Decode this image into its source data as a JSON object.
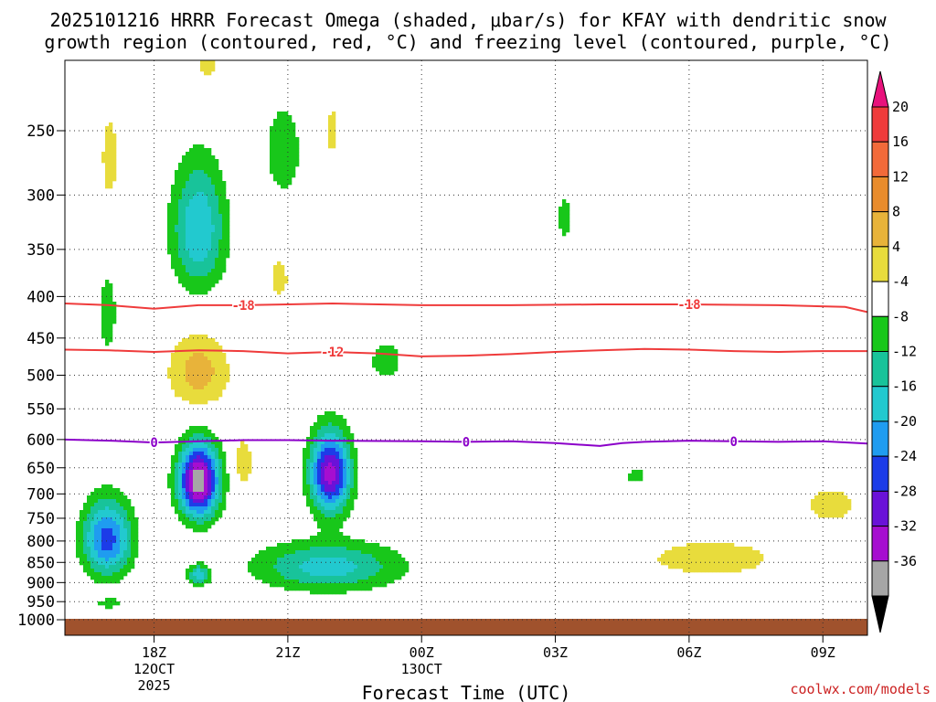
{
  "title_line1": "2025101216 HRRR Forecast Omega (shaded, μbar/s) for KFAY with dendritic snow",
  "title_line2": "growth region (contoured, red, °C) and freezing level (contoured, purple, °C)",
  "credit": "coolwx.com/models",
  "chart_data": {
    "type": "heatmap",
    "title": "2025101216 HRRR Forecast Omega (shaded, μbar/s) for KFAY with dendritic snow growth region (contoured, red, °C) and freezing level (contoured, purple, °C)",
    "xlabel": "Forecast Time (UTC)",
    "ylabel": "",
    "xlim_hours": [
      16,
      34
    ],
    "ylim_hpa": [
      1020,
      200
    ],
    "y_scale": "log-pressure",
    "grid": true,
    "x_ticks": [
      {
        "hour": 18,
        "label": "18Z",
        "sub1": "12OCT",
        "sub2": "2025"
      },
      {
        "hour": 21,
        "label": "21Z",
        "sub1": "",
        "sub2": ""
      },
      {
        "hour": 24,
        "label": "00Z",
        "sub1": "13OCT",
        "sub2": ""
      },
      {
        "hour": 27,
        "label": "03Z",
        "sub1": "",
        "sub2": ""
      },
      {
        "hour": 30,
        "label": "06Z",
        "sub1": "",
        "sub2": ""
      },
      {
        "hour": 33,
        "label": "09Z",
        "sub1": "",
        "sub2": ""
      }
    ],
    "y_ticks": [
      {
        "p": 250,
        "label": "250"
      },
      {
        "p": 300,
        "label": "300"
      },
      {
        "p": 350,
        "label": "350"
      },
      {
        "p": 400,
        "label": "400"
      },
      {
        "p": 450,
        "label": "450"
      },
      {
        "p": 500,
        "label": "500"
      },
      {
        "p": 550,
        "label": "550"
      },
      {
        "p": 600,
        "label": "600"
      },
      {
        "p": 650,
        "label": "650"
      },
      {
        "p": 700,
        "label": "700"
      },
      {
        "p": 750,
        "label": "750"
      },
      {
        "p": 800,
        "label": "800"
      },
      {
        "p": 850,
        "label": "850"
      },
      {
        "p": 900,
        "label": "900"
      },
      {
        "p": 950,
        "label": "950"
      },
      {
        "p": 1000,
        "label": "1000"
      }
    ],
    "colorbar": {
      "bins": [
        {
          "color": "#e8127c",
          "label": "",
          "shape": "arrow-up"
        },
        {
          "color": "#ef3b3b",
          "label": "20"
        },
        {
          "color": "#f26a3a",
          "label": "16"
        },
        {
          "color": "#e98c2c",
          "label": "12"
        },
        {
          "color": "#e8b33a",
          "label": "8"
        },
        {
          "color": "#e8dc3c",
          "label": "4"
        },
        {
          "color": "#ffffff",
          "label": "-4"
        },
        {
          "color": "#18c71a",
          "label": "-8"
        },
        {
          "color": "#18c39a",
          "label": "-12"
        },
        {
          "color": "#22c9cf",
          "label": "-16"
        },
        {
          "color": "#1f9cf0",
          "label": "-20"
        },
        {
          "color": "#1c3ce8",
          "label": "-24"
        },
        {
          "color": "#6a12d8",
          "label": "-28"
        },
        {
          "color": "#a60ed0",
          "label": "-32"
        },
        {
          "color": "#a6a6a6",
          "label": "-36"
        },
        {
          "color": "#000000",
          "label": "",
          "shape": "arrow-down"
        }
      ]
    },
    "terrain": {
      "from_hpa": 1000,
      "color": "#a0522d"
    },
    "omega_features": [
      {
        "hour": 16.95,
        "p": 795,
        "peak": -22,
        "hw": 0.55,
        "hp": 85
      },
      {
        "hour": 19.0,
        "p": 675,
        "peak": -36,
        "hw": 0.45,
        "hp": 70
      },
      {
        "hour": 21.95,
        "p": 660,
        "peak": -30,
        "hw": 0.45,
        "hp": 75
      },
      {
        "hour": 21.9,
        "p": 860,
        "peak": -14,
        "hw": 1.6,
        "hp": 60
      },
      {
        "hour": 19.0,
        "p": 880,
        "peak": -14,
        "hw": 0.25,
        "hp": 25
      },
      {
        "hour": 19.0,
        "p": 330,
        "peak": -16,
        "hw": 0.6,
        "hp": 60
      },
      {
        "hour": 20.9,
        "p": 265,
        "peak": -8,
        "hw": 0.4,
        "hp": 35
      },
      {
        "hour": 16.95,
        "p": 420,
        "peak": -8,
        "hw": 0.2,
        "hp": 45
      },
      {
        "hour": 23.2,
        "p": 480,
        "peak": -8,
        "hw": 0.35,
        "hp": 25
      },
      {
        "hour": 27.2,
        "p": 320,
        "peak": -6,
        "hw": 0.2,
        "hp": 25
      },
      {
        "hour": 28.8,
        "p": 665,
        "peak": -6,
        "hw": 0.25,
        "hp": 20
      },
      {
        "hour": 17.0,
        "p": 955,
        "peak": -6,
        "hw": 0.3,
        "hp": 15
      },
      {
        "hour": 19.0,
        "p": 495,
        "peak": 10,
        "hw": 0.7,
        "hp": 55
      },
      {
        "hour": 20.0,
        "p": 640,
        "peak": 8,
        "hw": 0.2,
        "hp": 45
      },
      {
        "hour": 17.0,
        "p": 270,
        "peak": 5,
        "hw": 0.3,
        "hp": 55
      },
      {
        "hour": 19.2,
        "p": 205,
        "peak": 5,
        "hw": 0.4,
        "hp": 25
      },
      {
        "hour": 20.8,
        "p": 380,
        "peak": 5,
        "hw": 0.35,
        "hp": 35
      },
      {
        "hour": 22.0,
        "p": 250,
        "peak": 5,
        "hw": 0.2,
        "hp": 30
      },
      {
        "hour": 30.5,
        "p": 840,
        "peak": 5,
        "hw": 2.5,
        "hp": 75
      },
      {
        "hour": 33.2,
        "p": 720,
        "peak": 5,
        "hw": 0.9,
        "hp": 55
      }
    ],
    "contours": [
      {
        "name": "dendritic -18C",
        "color": "#ef3b3b",
        "label": "-18",
        "points": [
          [
            16,
            408
          ],
          [
            17,
            410
          ],
          [
            18,
            414
          ],
          [
            19,
            410
          ],
          [
            20,
            410
          ],
          [
            21,
            409
          ],
          [
            22,
            408
          ],
          [
            24,
            410
          ],
          [
            26,
            410
          ],
          [
            28,
            409
          ],
          [
            30,
            409
          ],
          [
            32,
            410
          ],
          [
            33.5,
            412
          ],
          [
            34,
            418
          ]
        ],
        "label_hours": [
          20,
          30
        ]
      },
      {
        "name": "dendritic -12C",
        "color": "#ef3b3b",
        "label": "-12",
        "points": [
          [
            16,
            465
          ],
          [
            17,
            466
          ],
          [
            18,
            468
          ],
          [
            19,
            466
          ],
          [
            20,
            467
          ],
          [
            21,
            470
          ],
          [
            22,
            468
          ],
          [
            23,
            470
          ],
          [
            24,
            474
          ],
          [
            25,
            473
          ],
          [
            26,
            471
          ],
          [
            27,
            468
          ],
          [
            28,
            466
          ],
          [
            29,
            464
          ],
          [
            30,
            465
          ],
          [
            31,
            467
          ],
          [
            32,
            468
          ],
          [
            33,
            467
          ],
          [
            34,
            467
          ]
        ],
        "label_hours": [
          22
        ]
      },
      {
        "name": "freezing level 0C",
        "color": "#8b00c9",
        "label": "0",
        "points": [
          [
            16,
            600
          ],
          [
            17,
            602
          ],
          [
            18,
            605
          ],
          [
            19,
            603
          ],
          [
            20,
            601
          ],
          [
            21,
            601
          ],
          [
            22,
            602
          ],
          [
            24,
            603
          ],
          [
            25,
            604
          ],
          [
            26,
            603
          ],
          [
            27,
            606
          ],
          [
            28,
            611
          ],
          [
            28.5,
            606
          ],
          [
            29,
            604
          ],
          [
            30,
            602
          ],
          [
            31,
            603
          ],
          [
            32,
            604
          ],
          [
            33,
            603
          ],
          [
            34,
            607
          ]
        ],
        "label_hours": [
          18,
          25,
          31
        ]
      }
    ]
  }
}
